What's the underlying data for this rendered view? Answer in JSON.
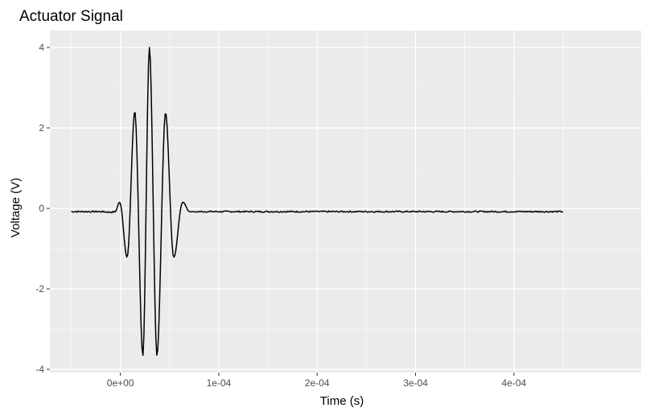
{
  "chart_data": {
    "type": "line",
    "title": "Actuator Signal",
    "xlabel": "Time (s)",
    "ylabel": "Voltage (V)",
    "xlim": [
      -5e-05,
      0.00045
    ],
    "ylim": [
      -4,
      4
    ],
    "x_ticks": [
      0,
      0.0001,
      0.0002,
      0.0003,
      0.0004
    ],
    "x_tick_labels": [
      "0e+00",
      "1e-04",
      "2e-04",
      "3e-04",
      "4e-04"
    ],
    "y_ticks": [
      -4,
      -2,
      0,
      2,
      4
    ],
    "y_tick_labels": [
      "-4",
      "-2",
      "0",
      "2",
      "4"
    ],
    "grid": true,
    "legend": "none",
    "colors": {
      "panel": "#ebebeb",
      "grid": "#ffffff",
      "line": "#000000"
    },
    "series": [
      {
        "x": [
          -5e-05,
          -2e-05,
          -5e-06,
          2e-07,
          7.5e-06,
          1.5e-05,
          2.3e-05,
          2.95e-05,
          3.7e-05,
          4.55e-05,
          5.35e-05,
          6.22e-05,
          6.95e-05,
          7.45e-05,
          7.7e-05,
          7.9e-05,
          0.0001,
          0.0002,
          0.0003,
          0.0004,
          0.00045
        ],
        "y": [
          -0.08,
          -0.08,
          -0.08,
          0.1,
          -1.15,
          2.38,
          -3.65,
          4.0,
          -3.65,
          2.35,
          -1.15,
          0.1,
          -0.07,
          -0.08,
          -0.09,
          -0.08,
          -0.08,
          -0.08,
          -0.08,
          -0.08,
          -0.08
        ]
      }
    ]
  }
}
